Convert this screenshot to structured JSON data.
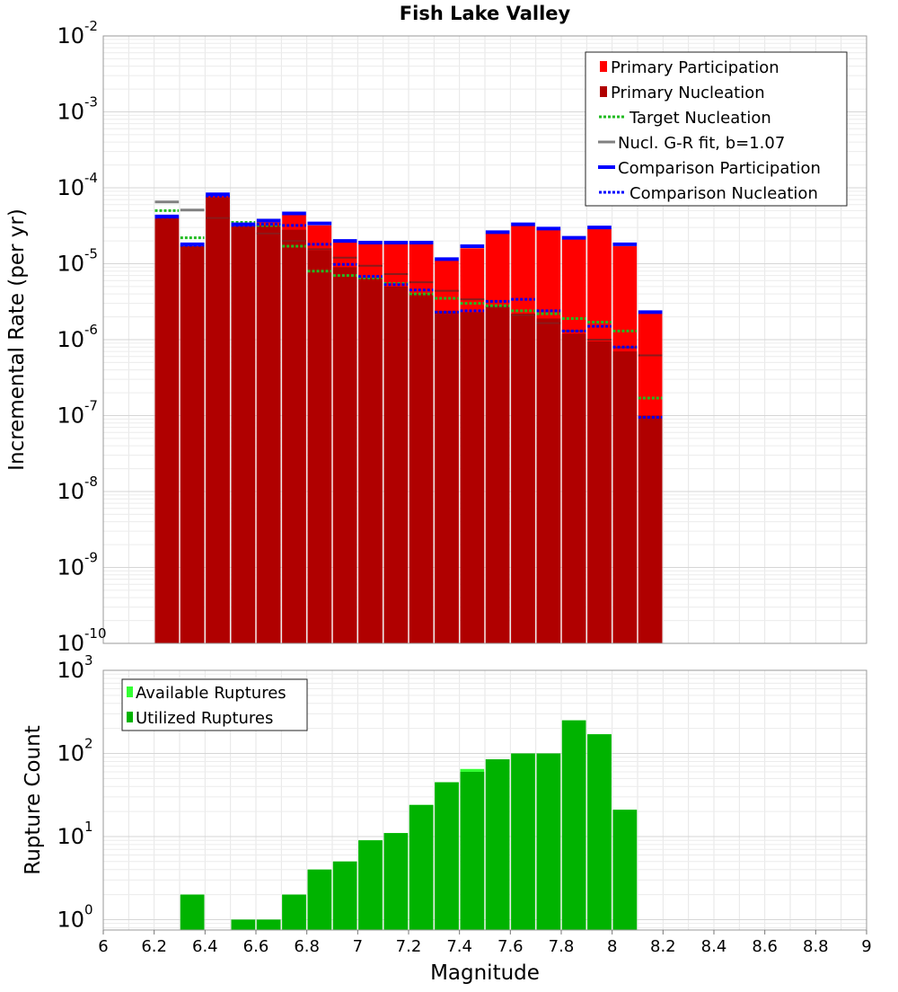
{
  "chart_data": [
    {
      "type": "bar",
      "title": "Fish Lake Valley",
      "xlabel": "",
      "ylabel": "Incremental Rate (per yr)",
      "xlim": [
        6,
        9
      ],
      "ylim": [
        1e-10,
        0.01
      ],
      "yscale": "log",
      "grid": true,
      "legend_position": "top-right",
      "y_ticks": [
        {
          "base": "10",
          "exp": "-10",
          "value": 1e-10
        },
        {
          "base": "10",
          "exp": "-9",
          "value": 1e-09
        },
        {
          "base": "10",
          "exp": "-8",
          "value": 1e-08
        },
        {
          "base": "10",
          "exp": "-7",
          "value": 1e-07
        },
        {
          "base": "10",
          "exp": "-6",
          "value": 1e-06
        },
        {
          "base": "10",
          "exp": "-5",
          "value": 1e-05
        },
        {
          "base": "10",
          "exp": "-4",
          "value": 0.0001
        },
        {
          "base": "10",
          "exp": "-3",
          "value": 0.001
        },
        {
          "base": "10",
          "exp": "-2",
          "value": 0.01
        }
      ],
      "bin_centers": [
        6.25,
        6.35,
        6.45,
        6.55,
        6.65,
        6.75,
        6.85,
        6.95,
        7.05,
        7.15,
        7.25,
        7.35,
        7.45,
        7.55,
        7.65,
        7.75,
        7.85,
        7.95,
        8.05,
        8.15
      ],
      "series": [
        {
          "name": "Primary Participation",
          "style": "bar",
          "color": "#ff0000",
          "values": [
            4e-05,
            1.7e-05,
            8e-05,
            3.1e-05,
            3.5e-05,
            4.4e-05,
            3.2e-05,
            1.9e-05,
            1.8e-05,
            1.8e-05,
            1.8e-05,
            1.1e-05,
            1.6e-05,
            2.5e-05,
            3.2e-05,
            2.8e-05,
            2.1e-05,
            2.9e-05,
            1.7e-05,
            2.2e-06
          ]
        },
        {
          "name": "Primary Nucleation",
          "style": "bar",
          "color": "#b00000",
          "values": [
            4e-05,
            1.7e-05,
            7.5e-05,
            3.1e-05,
            3.2e-05,
            2.8e-05,
            1.5e-05,
            9e-06,
            6.5e-06,
            5e-06,
            4e-06,
            2.4e-06,
            2.3e-06,
            2.8e-06,
            2.2e-06,
            1.9e-06,
            1.2e-06,
            9.5e-07,
            7e-07,
            1e-07
          ]
        },
        {
          "name": "Target Nucleation",
          "style": "dotted",
          "color": "#22bb22",
          "values": [
            5e-05,
            2.2e-05,
            null,
            3.5e-05,
            3.2e-05,
            1.7e-05,
            8e-06,
            7e-06,
            6.5e-06,
            5.5e-06,
            4e-06,
            3.5e-06,
            3e-06,
            2.8e-06,
            2.4e-06,
            2.2e-06,
            1.9e-06,
            1.7e-06,
            1.3e-06,
            1.7e-07
          ]
        },
        {
          "name": "Nucl. G-R fit, b=1.07",
          "style": "solid",
          "color": "#808080",
          "segment_color": "#8b1a1a",
          "values": [
            6.5e-05,
            5.1e-05,
            4e-05,
            3.2e-05,
            2.5e-05,
            2e-05,
            1.55e-05,
            1.2e-05,
            9.4e-06,
            7.3e-06,
            5.7e-06,
            4.4e-06,
            3.4e-06,
            2.7e-06,
            2.1e-06,
            1.65e-06,
            1.3e-06,
            1e-06,
            7.9e-07,
            6.2e-07
          ]
        },
        {
          "name": "Comparison Participation",
          "style": "solid",
          "color": "#0000ff",
          "values": [
            4.2e-05,
            1.8e-05,
            8.2e-05,
            3.3e-05,
            3.7e-05,
            4.6e-05,
            3.4e-05,
            2e-05,
            1.9e-05,
            1.9e-05,
            1.9e-05,
            1.15e-05,
            1.7e-05,
            2.6e-05,
            3.3e-05,
            2.9e-05,
            2.2e-05,
            3e-05,
            1.8e-05,
            2.3e-06
          ]
        },
        {
          "name": "Comparison Nucleation",
          "style": "dotted",
          "color": "#0000ff",
          "values": [
            4.1e-05,
            1.75e-05,
            7.8e-05,
            3.2e-05,
            3.3e-05,
            3.2e-05,
            1.8e-05,
            9.8e-06,
            6.8e-06,
            5.3e-06,
            4.5e-06,
            2.3e-06,
            2.4e-06,
            3.2e-06,
            3.4e-06,
            2.4e-06,
            1.3e-06,
            1.5e-06,
            8e-07,
            9.5e-08
          ]
        }
      ]
    },
    {
      "type": "bar",
      "title": "",
      "xlabel": "Magnitude",
      "ylabel": "Rupture Count",
      "xlim": [
        6,
        9
      ],
      "ylim": [
        0.75,
        1000
      ],
      "yscale": "log",
      "grid": true,
      "legend_position": "top-left",
      "x_ticks": [
        "6",
        "6.2",
        "6.4",
        "6.6",
        "6.8",
        "7",
        "7.2",
        "7.4",
        "7.6",
        "7.8",
        "8",
        "8.2",
        "8.4",
        "8.6",
        "8.8",
        "9"
      ],
      "y_ticks": [
        {
          "base": "10",
          "exp": "0",
          "value": 1
        },
        {
          "base": "10",
          "exp": "1",
          "value": 10
        },
        {
          "base": "10",
          "exp": "2",
          "value": 100
        },
        {
          "base": "10",
          "exp": "3",
          "value": 1000
        }
      ],
      "bin_centers": [
        6.35,
        6.55,
        6.65,
        6.75,
        6.85,
        6.95,
        7.05,
        7.15,
        7.25,
        7.35,
        7.45,
        7.55,
        7.65,
        7.75,
        7.85,
        7.95,
        8.05
      ],
      "series": [
        {
          "name": "Available Ruptures",
          "style": "bar",
          "color": "#33ff33",
          "values": [
            2,
            1,
            1,
            2,
            4,
            5,
            9,
            11,
            24,
            45,
            65,
            85,
            100,
            100,
            250,
            170,
            21
          ]
        },
        {
          "name": "Utilized Ruptures",
          "style": "bar",
          "color": "#00b300",
          "values": [
            2,
            1,
            1,
            2,
            4,
            5,
            9,
            11,
            24,
            45,
            60,
            85,
            100,
            100,
            250,
            170,
            21
          ]
        }
      ]
    }
  ]
}
